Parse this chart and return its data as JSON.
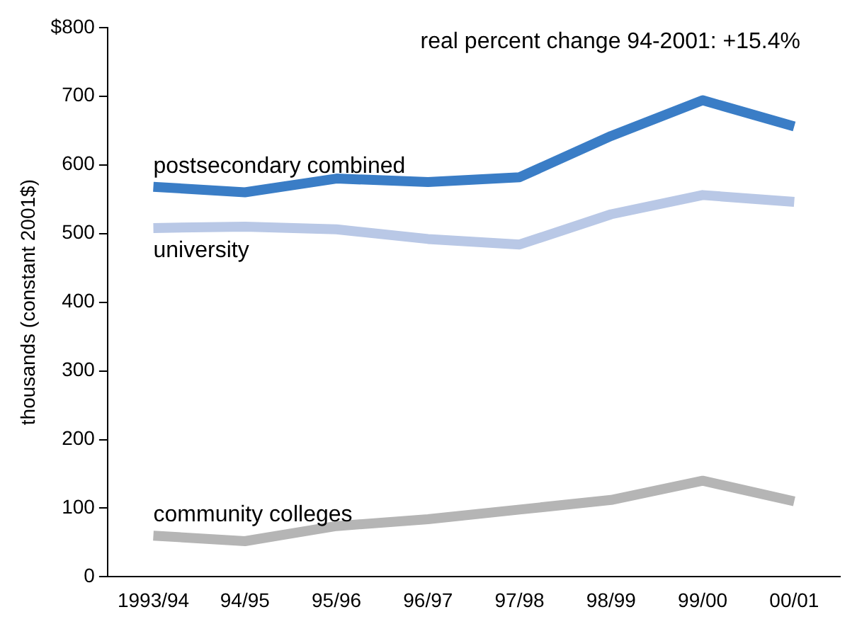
{
  "chart_data": {
    "type": "line",
    "ylabel": "thousands (constant 2001$)",
    "annotations": [
      "real percent change 94-2001: +15.4%"
    ],
    "categories": [
      "1993/94",
      "94/95",
      "95/96",
      "96/97",
      "97/98",
      "98/99",
      "99/00",
      "00/01"
    ],
    "series": [
      {
        "name": "postsecondary combined",
        "color": "#3a7dc6",
        "values": [
          568,
          560,
          580,
          575,
          582,
          642,
          694,
          656
        ]
      },
      {
        "name": "university",
        "color": "#b9c8e6",
        "values": [
          508,
          510,
          506,
          492,
          484,
          528,
          556,
          546
        ]
      },
      {
        "name": "community colleges",
        "color": "#b5b5b5",
        "values": [
          60,
          52,
          74,
          84,
          98,
          112,
          140,
          110
        ]
      }
    ],
    "ylim": [
      0,
      800
    ],
    "yticks": [
      0,
      100,
      200,
      300,
      400,
      500,
      600,
      700,
      {
        "value": 800,
        "label": "$800"
      }
    ],
    "grid": false,
    "legend": false,
    "marker": "none",
    "line_style": "solid"
  }
}
